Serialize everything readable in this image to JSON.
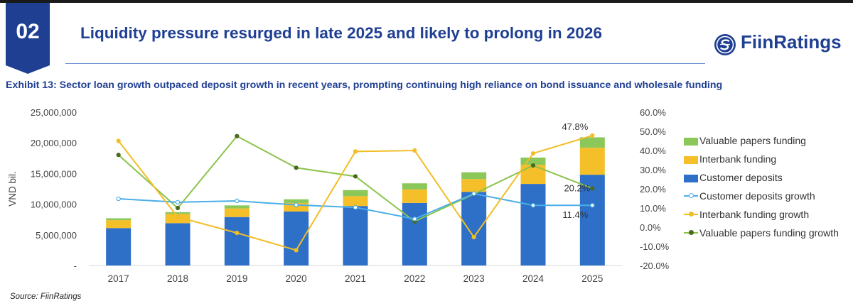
{
  "header": {
    "section_number": "02",
    "title": "Liquidity pressure resurged in late 2025 and likely to prolong in 2026",
    "brand": "FiinRatings"
  },
  "exhibit_title": "Exhibit 13: Sector loan growth outpaced deposit growth in recent years, prompting continuing high reliance on bond issuance and wholesale funding",
  "source": "Source: FiinRatings",
  "colors": {
    "brand": "#1f3f93",
    "customer_deposits": "#2e6fc8",
    "interbank": "#f5bf2a",
    "valuable_papers": "#8cc75a",
    "deposits_growth": "#4aaee8",
    "interbank_growth": "#f2bd25",
    "papers_growth": "#8bc34a"
  },
  "chart_data": {
    "type": "bar",
    "stacked": true,
    "categories": [
      "2017",
      "2018",
      "2019",
      "2020",
      "2021",
      "2022",
      "2023",
      "2024",
      "2025"
    ],
    "ylabel": "VND bil.",
    "ylim": [
      0,
      25000000
    ],
    "y_ticks": [
      "-",
      "5,000,000",
      "10,000,000",
      "15,000,000",
      "20,000,000",
      "25,000,000"
    ],
    "y2lim": [
      -0.2,
      0.6
    ],
    "y2_ticks": [
      "-20.0%",
      "-10.0%",
      "0.0%",
      "10.0%",
      "20.0%",
      "30.0%",
      "40.0%",
      "50.0%",
      "60.0%"
    ],
    "series": [
      {
        "name": "Customer deposits",
        "kind": "bar",
        "color_key": "customer_deposits",
        "values": [
          6100000,
          6900000,
          7900000,
          8800000,
          9700000,
          10200000,
          12000000,
          13300000,
          14800000
        ]
      },
      {
        "name": "Interbank funding",
        "kind": "bar",
        "color_key": "interbank",
        "values": [
          1300000,
          1500000,
          1400000,
          1400000,
          1600000,
          2200000,
          2100000,
          3100000,
          4400000
        ]
      },
      {
        "name": "Valuable papers funding",
        "kind": "bar",
        "color_key": "valuable_papers",
        "values": [
          300000,
          300000,
          500000,
          600000,
          1000000,
          1000000,
          1100000,
          1200000,
          1700000
        ]
      },
      {
        "name": "Customer deposits growth",
        "kind": "line",
        "color_key": "deposits_growth",
        "values": [
          0.148,
          0.13,
          0.137,
          0.116,
          0.103,
          0.043,
          0.175,
          0.114,
          0.114
        ]
      },
      {
        "name": "Interbank funding growth",
        "kind": "line",
        "color_key": "interbank_growth",
        "values": [
          0.45,
          0.053,
          -0.03,
          -0.12,
          0.395,
          0.4,
          -0.052,
          0.385,
          0.478
        ]
      },
      {
        "name": "Valuable papers funding growth",
        "kind": "line",
        "color_key": "papers_growth",
        "values": [
          0.377,
          0.1,
          0.475,
          0.31,
          0.265,
          0.03,
          0.173,
          0.322,
          0.202
        ]
      }
    ],
    "annotations": [
      {
        "text": "47.8%",
        "year": "2025",
        "series": "Interbank funding growth"
      },
      {
        "text": "20.2%",
        "year": "2025",
        "series": "Valuable papers funding growth"
      },
      {
        "text": "11.4%",
        "year": "2025",
        "series": "Customer deposits growth"
      }
    ],
    "legend": [
      {
        "label": "Valuable papers funding",
        "type": "box",
        "color_key": "valuable_papers"
      },
      {
        "label": "Interbank funding",
        "type": "box",
        "color_key": "interbank"
      },
      {
        "label": "Customer deposits",
        "type": "box",
        "color_key": "customer_deposits"
      },
      {
        "label": "Customer deposits growth",
        "type": "line",
        "color_key": "deposits_growth"
      },
      {
        "label": "Interbank funding growth",
        "type": "line",
        "color_key": "interbank_growth"
      },
      {
        "label": "Valuable papers funding growth",
        "type": "line",
        "color_key": "papers_growth"
      }
    ],
    "legend_position": "right"
  }
}
